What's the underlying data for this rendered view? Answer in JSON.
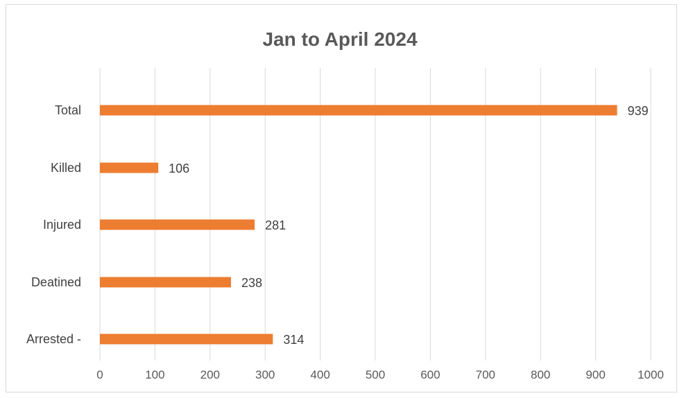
{
  "chart_data": {
    "type": "bar",
    "orientation": "horizontal",
    "title": "Jan to April 2024",
    "xlabel": "",
    "ylabel": "",
    "categories": [
      "Total",
      "Killed",
      "Injured",
      "Deatined",
      "Arrested -"
    ],
    "values": [
      939,
      106,
      281,
      238,
      314
    ],
    "data_labels": [
      "939",
      "106",
      "281",
      "238",
      "314"
    ],
    "xlim": [
      0,
      1000
    ],
    "ticks": [
      0,
      100,
      200,
      300,
      400,
      500,
      600,
      700,
      800,
      900,
      1000
    ],
    "tick_labels": [
      "0",
      "100",
      "200",
      "300",
      "400",
      "500",
      "600",
      "700",
      "800",
      "900",
      "1000"
    ],
    "grid": "vertical",
    "legend": "none",
    "bar_color": "#ED7D31",
    "grid_color": "#D9D9D9",
    "title_color": "#595959"
  }
}
